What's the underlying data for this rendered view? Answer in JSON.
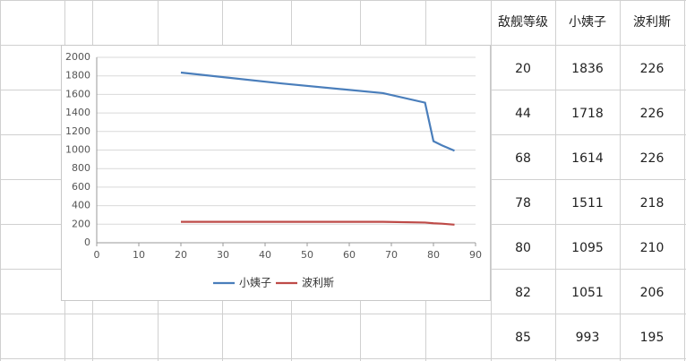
{
  "chart_data": {
    "type": "line",
    "x": [
      20,
      44,
      68,
      78,
      80,
      82,
      85
    ],
    "series": [
      {
        "name": "小姨子",
        "color": "#4a7ebb",
        "values": [
          1836,
          1718,
          1614,
          1511,
          1095,
          1051,
          993
        ]
      },
      {
        "name": "波利斯",
        "color": "#be4b48",
        "values": [
          226,
          226,
          226,
          218,
          210,
          206,
          195
        ]
      }
    ],
    "xlim": [
      0,
      90
    ],
    "xticks": [
      0,
      10,
      20,
      30,
      40,
      50,
      60,
      70,
      80,
      90
    ],
    "ylim": [
      0,
      2000
    ],
    "yticks": [
      0,
      200,
      400,
      600,
      800,
      1000,
      1200,
      1400,
      1600,
      1800,
      2000
    ],
    "grid": true,
    "legend": "bottom"
  },
  "table": {
    "header": [
      "敌舰等级"
    ]
  }
}
